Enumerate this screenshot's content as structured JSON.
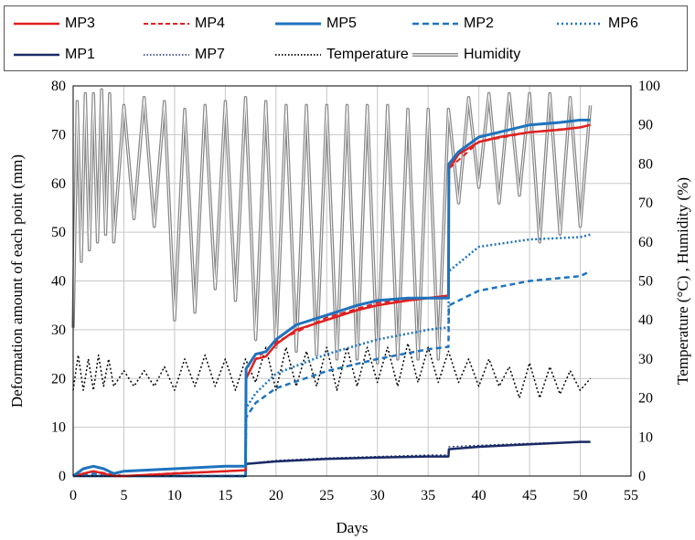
{
  "chart_data": {
    "type": "line",
    "title": "",
    "xlabel": "Days",
    "ylabel_left": "Deformation amount of each point (mm)",
    "ylabel_right": "Temperature (°C) , Humidity (%)",
    "xlim": [
      0,
      55
    ],
    "ylim_left": [
      0,
      80
    ],
    "ylim_right": [
      0,
      100
    ],
    "x_ticks": [
      "0",
      "5",
      "10",
      "15",
      "20",
      "25",
      "30",
      "35",
      "40",
      "45",
      "50",
      "55"
    ],
    "y_left_ticks": [
      "0",
      "10",
      "20",
      "30",
      "40",
      "50",
      "60",
      "70",
      "80"
    ],
    "y_right_ticks": [
      "0",
      "10",
      "20",
      "30",
      "40",
      "50",
      "60",
      "70",
      "80",
      "90",
      "100"
    ],
    "grid": true,
    "legend_placement": "top",
    "series": [
      {
        "name": "MP3",
        "axis": "left",
        "color": "#e02020",
        "style": "solid",
        "x": [
          0,
          1,
          2,
          3,
          4,
          5,
          10,
          15,
          17,
          17.05,
          18,
          19,
          20,
          22,
          25,
          28,
          30,
          33,
          35,
          37,
          37.05,
          38,
          40,
          42,
          45,
          48,
          50,
          51
        ],
        "y": [
          0,
          0.5,
          1,
          0.5,
          0,
          0,
          0.5,
          1,
          1.2,
          20,
          24,
          24.5,
          27,
          30,
          32,
          34,
          35,
          36,
          36.5,
          37,
          63,
          66,
          68.5,
          69.5,
          70.5,
          71,
          71.5,
          72
        ]
      },
      {
        "name": "MP4",
        "axis": "left",
        "color": "#e02020",
        "style": "dashed",
        "x": [
          0,
          2,
          5,
          10,
          15,
          17,
          17.05,
          18,
          20,
          25,
          30,
          35,
          37,
          37.05,
          40,
          45,
          50,
          51
        ],
        "y": [
          0,
          1,
          0,
          0.6,
          1,
          1.2,
          20,
          24,
          27.5,
          32.5,
          35.5,
          36.5,
          37,
          63,
          68.5,
          70.5,
          71.5,
          72
        ]
      },
      {
        "name": "MP5",
        "axis": "left",
        "color": "#1e73be",
        "style": "solid",
        "x": [
          0,
          1,
          2,
          3,
          4,
          5,
          10,
          15,
          17,
          17.05,
          18,
          19,
          20,
          22,
          25,
          28,
          30,
          33,
          35,
          37,
          37.05,
          38,
          40,
          42,
          45,
          48,
          50,
          51
        ],
        "y": [
          0,
          1.5,
          2,
          1.5,
          0.5,
          1,
          1.5,
          2,
          2,
          22,
          25,
          25.5,
          28,
          31,
          33,
          35,
          36,
          36.5,
          36.5,
          36.5,
          64,
          66.5,
          69.5,
          70.5,
          72,
          72.5,
          73,
          73
        ]
      },
      {
        "name": "MP2",
        "axis": "left",
        "color": "#1e73be",
        "style": "dashed",
        "x": [
          0,
          2,
          5,
          10,
          15,
          17,
          17.05,
          18,
          20,
          25,
          30,
          35,
          37,
          37.05,
          40,
          45,
          50,
          51
        ],
        "y": [
          0,
          0.5,
          0,
          0,
          0,
          0,
          12,
          15,
          18,
          21.5,
          24,
          26,
          26.5,
          35,
          38,
          40,
          41,
          42
        ]
      },
      {
        "name": "MP6",
        "axis": "left",
        "color": "#1e73be",
        "style": "dotted",
        "x": [
          0,
          2,
          5,
          10,
          15,
          17,
          17.05,
          18,
          20,
          25,
          30,
          35,
          37,
          37.05,
          40,
          45,
          50,
          51
        ],
        "y": [
          0,
          0,
          0,
          0,
          0,
          0,
          14,
          17,
          21,
          25,
          28,
          30,
          30.5,
          42,
          47,
          48.5,
          49,
          49.5
        ]
      },
      {
        "name": "MP1",
        "axis": "left",
        "color": "#1a2a66",
        "style": "solid",
        "x": [
          0,
          5,
          10,
          15,
          17,
          17.05,
          20,
          25,
          30,
          35,
          37,
          37.05,
          40,
          45,
          50,
          51
        ],
        "y": [
          0,
          0,
          0,
          0,
          0,
          2.5,
          3,
          3.5,
          3.8,
          4,
          4,
          5.5,
          6,
          6.5,
          7,
          7
        ]
      },
      {
        "name": "MP7",
        "axis": "left",
        "color": "#1a2a66",
        "style": "dotted",
        "x": [
          0,
          5,
          10,
          15,
          17,
          17.05,
          20,
          25,
          30,
          35,
          37,
          37.05,
          40,
          45,
          50,
          51
        ],
        "y": [
          0,
          0,
          0,
          0,
          0,
          2.5,
          3.2,
          3.7,
          4,
          4.3,
          4.3,
          6,
          6.3,
          6.7,
          7,
          7
        ]
      },
      {
        "name": "Temperature",
        "axis": "right",
        "color": "#000000",
        "style": "dotted",
        "x": [
          0,
          0.5,
          1,
          1.5,
          2,
          2.5,
          3,
          3.5,
          4,
          5,
          6,
          7,
          8,
          9,
          10,
          11,
          12,
          13,
          14,
          15,
          16,
          17,
          18,
          19,
          20,
          21,
          22,
          23,
          24,
          25,
          26,
          27,
          28,
          29,
          30,
          31,
          32,
          33,
          34,
          35,
          36,
          37,
          38,
          39,
          40,
          41,
          42,
          43,
          44,
          45,
          46,
          47,
          48,
          49,
          50,
          51
        ],
        "y": [
          22,
          31,
          22,
          30,
          22,
          31,
          23,
          30,
          23,
          27,
          23,
          27,
          23,
          28,
          22,
          30,
          23,
          31,
          23,
          30,
          22,
          30,
          24,
          33,
          22,
          33,
          23,
          32,
          23,
          33,
          22,
          33,
          23,
          33,
          24,
          33,
          23,
          34,
          24,
          33,
          24,
          32,
          24,
          30,
          23,
          30,
          23,
          28,
          20,
          29,
          20,
          28,
          21,
          27,
          22,
          25
        ]
      },
      {
        "name": "Humidity",
        "axis": "right",
        "color": "#888888",
        "style": "double",
        "x": [
          0,
          0.4,
          0.8,
          1.2,
          1.6,
          2.0,
          2.4,
          2.8,
          3.2,
          3.6,
          4,
          5,
          6,
          7,
          8,
          9,
          10,
          11,
          12,
          13,
          14,
          15,
          16,
          17,
          18,
          19,
          20,
          21,
          22,
          23,
          24,
          25,
          26,
          27,
          28,
          29,
          30,
          31,
          32,
          33,
          34,
          35,
          36,
          37,
          38,
          39,
          40,
          41,
          42,
          43,
          44,
          45,
          46,
          47,
          48,
          49,
          50,
          51
        ],
        "y": [
          38,
          96,
          55,
          98,
          58,
          98,
          60,
          99,
          62,
          98,
          60,
          95,
          66,
          97,
          64,
          96,
          40,
          94,
          42,
          95,
          48,
          96,
          45,
          97,
          35,
          96,
          33,
          95,
          32,
          95,
          31,
          95,
          30,
          95,
          30,
          95,
          29,
          95,
          30,
          94,
          30,
          94,
          30,
          94,
          70,
          97,
          74,
          98,
          70,
          98,
          72,
          98,
          60,
          98,
          62,
          97,
          64,
          95
        ]
      }
    ]
  }
}
